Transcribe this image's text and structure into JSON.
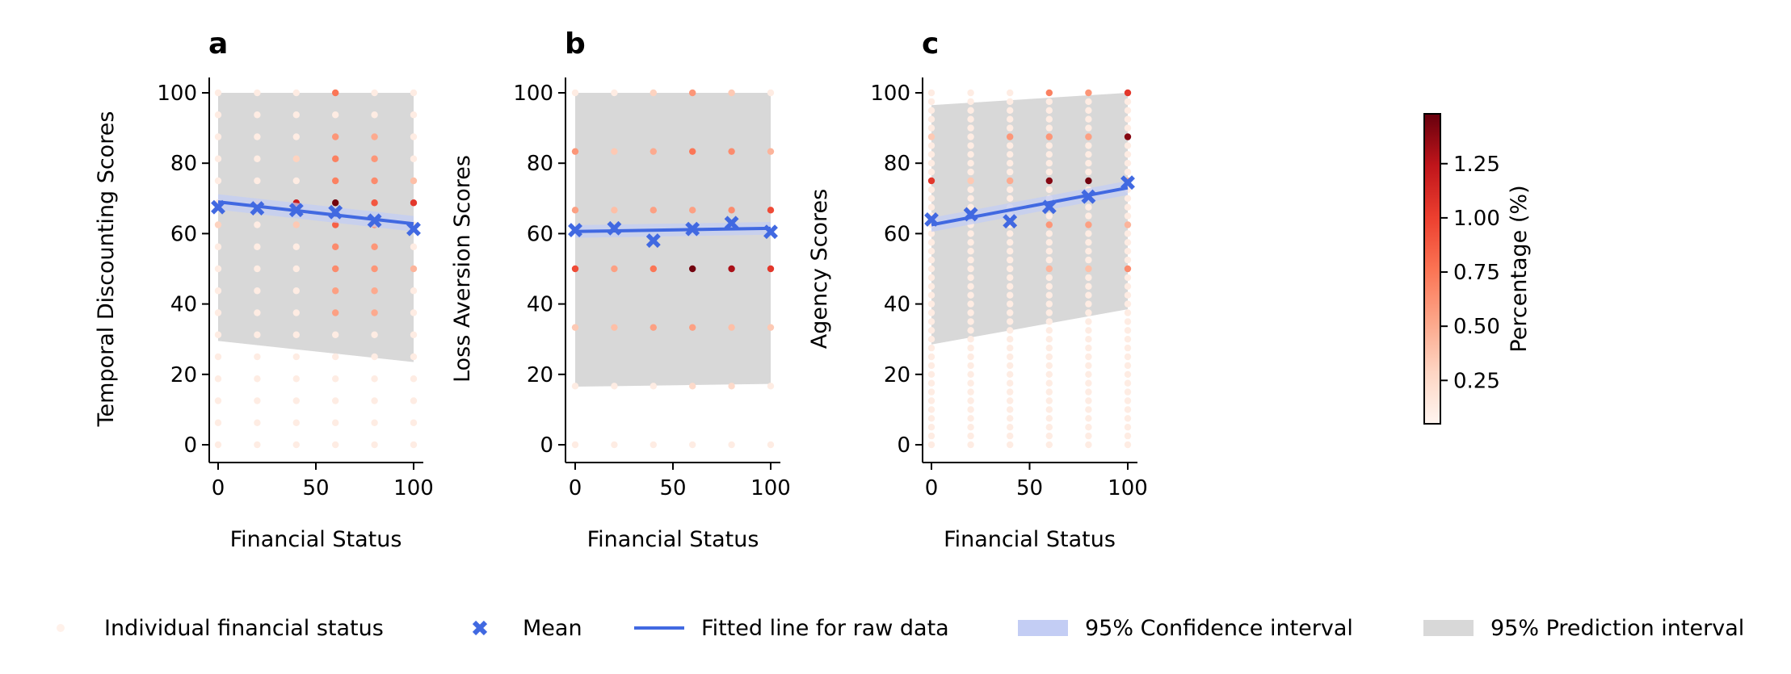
{
  "colors": {
    "mean": "#4169e1",
    "fit_line": "#4169e1",
    "confidence_band": "#c3cdf4",
    "prediction_band": "#d8d8d8",
    "colormap": [
      "#fff5f0",
      "#fdd5c3",
      "#fca588",
      "#fb7353",
      "#ec3f2f",
      "#c0151b",
      "#67000d"
    ]
  },
  "legend": {
    "items": [
      {
        "label": "Individual financial status",
        "kind": "dot"
      },
      {
        "label": "Mean",
        "kind": "x"
      },
      {
        "label": "Fitted line for raw data",
        "kind": "line"
      },
      {
        "label": "95% Confidence interval",
        "kind": "ci"
      },
      {
        "label": "95% Prediction interval",
        "kind": "pi"
      }
    ]
  },
  "colorbar": {
    "label": "Percentage (%)",
    "range": [
      0.05,
      1.48
    ],
    "ticks": [
      0.25,
      0.5,
      0.75,
      1.0,
      1.25
    ],
    "tick_labels": [
      "0.25",
      "0.50",
      "0.75",
      "1.00",
      "1.25"
    ]
  },
  "chart_data": [
    {
      "type": "scatter",
      "panel": "a",
      "xlabel": "Financial Status",
      "ylabel": "Temporal Discounting Scores",
      "xlim": [
        -2.5,
        104.5
      ],
      "ylim": [
        -5,
        105
      ],
      "xticks": [
        0,
        50,
        100
      ],
      "yticks": [
        0,
        20,
        40,
        60,
        80,
        100
      ],
      "x_levels": [
        0,
        20,
        40,
        60,
        80,
        100
      ],
      "dot_y": [
        100,
        93.75,
        87.5,
        81.25,
        75,
        68.75,
        62.5,
        56.25,
        50,
        43.75,
        37.5,
        31.25,
        25,
        18.75,
        12.5,
        6.25,
        0
      ],
      "highlight": [
        {
          "x": 60,
          "y": 100,
          "p": 0.75
        },
        {
          "x": 60,
          "y": 87.5,
          "p": 0.6
        },
        {
          "x": 80,
          "y": 87.5,
          "p": 0.5
        },
        {
          "x": 60,
          "y": 81.25,
          "p": 0.7
        },
        {
          "x": 80,
          "y": 81.25,
          "p": 0.6
        },
        {
          "x": 60,
          "y": 75,
          "p": 0.7
        },
        {
          "x": 80,
          "y": 75,
          "p": 0.65
        },
        {
          "x": 100,
          "y": 75,
          "p": 0.4
        },
        {
          "x": 40,
          "y": 68.75,
          "p": 1.2
        },
        {
          "x": 60,
          "y": 68.75,
          "p": 1.45
        },
        {
          "x": 80,
          "y": 68.75,
          "p": 0.9
        },
        {
          "x": 100,
          "y": 68.75,
          "p": 1.05
        },
        {
          "x": 60,
          "y": 62.5,
          "p": 0.85
        },
        {
          "x": 80,
          "y": 62.5,
          "p": 0.65
        },
        {
          "x": 60,
          "y": 56.25,
          "p": 0.65
        },
        {
          "x": 80,
          "y": 56.25,
          "p": 0.6
        },
        {
          "x": 60,
          "y": 50,
          "p": 0.65
        },
        {
          "x": 80,
          "y": 50,
          "p": 0.6
        },
        {
          "x": 100,
          "y": 50,
          "p": 0.45
        },
        {
          "x": 60,
          "y": 43.75,
          "p": 0.55
        },
        {
          "x": 80,
          "y": 43.75,
          "p": 0.5
        },
        {
          "x": 60,
          "y": 37.5,
          "p": 0.55
        },
        {
          "x": 80,
          "y": 37.5,
          "p": 0.5
        },
        {
          "x": 40,
          "y": 62.5,
          "p": 0.35
        },
        {
          "x": 40,
          "y": 81.25,
          "p": 0.3
        },
        {
          "x": 0,
          "y": 62.5,
          "p": 0.3
        },
        {
          "x": 20,
          "y": 68.75,
          "p": 0.3
        }
      ],
      "mean_x": [
        0,
        20,
        40,
        60,
        80,
        100
      ],
      "mean_y": [
        67.5,
        67.2,
        66.7,
        66.1,
        63.7,
        61.3
      ],
      "fit": {
        "y0": 69.0,
        "y100": 62.8,
        "ci_halfwidth": 2.2
      },
      "pi": {
        "upper": [
          100,
          100
        ],
        "lower": [
          29.5,
          23.5
        ]
      }
    },
    {
      "type": "scatter",
      "panel": "b",
      "xlabel": "Financial Status",
      "ylabel": "Loss Aversion Scores",
      "xlim": [
        -2.5,
        104.5
      ],
      "ylim": [
        -5,
        105
      ],
      "xticks": [
        0,
        50,
        100
      ],
      "yticks": [
        0,
        20,
        40,
        60,
        80,
        100
      ],
      "x_levels": [
        0,
        20,
        40,
        60,
        80,
        100
      ],
      "dot_y": [
        100,
        83.33,
        66.67,
        50,
        33.33,
        16.67,
        0
      ],
      "highlight": [
        {
          "x": 0,
          "y": 83.33,
          "p": 0.6
        },
        {
          "x": 20,
          "y": 83.33,
          "p": 0.35
        },
        {
          "x": 40,
          "y": 83.33,
          "p": 0.5
        },
        {
          "x": 60,
          "y": 83.33,
          "p": 0.75
        },
        {
          "x": 80,
          "y": 83.33,
          "p": 0.65
        },
        {
          "x": 100,
          "y": 83.33,
          "p": 0.45
        },
        {
          "x": 60,
          "y": 100,
          "p": 0.6
        },
        {
          "x": 40,
          "y": 100,
          "p": 0.3
        },
        {
          "x": 80,
          "y": 100,
          "p": 0.35
        },
        {
          "x": 0,
          "y": 66.67,
          "p": 0.55
        },
        {
          "x": 20,
          "y": 66.67,
          "p": 0.4
        },
        {
          "x": 40,
          "y": 66.67,
          "p": 0.55
        },
        {
          "x": 60,
          "y": 66.67,
          "p": 0.55
        },
        {
          "x": 80,
          "y": 66.67,
          "p": 0.65
        },
        {
          "x": 100,
          "y": 66.67,
          "p": 0.95
        },
        {
          "x": 0,
          "y": 50,
          "p": 0.95
        },
        {
          "x": 20,
          "y": 50,
          "p": 0.55
        },
        {
          "x": 40,
          "y": 50,
          "p": 0.75
        },
        {
          "x": 60,
          "y": 50,
          "p": 1.45
        },
        {
          "x": 80,
          "y": 50,
          "p": 1.3
        },
        {
          "x": 100,
          "y": 50,
          "p": 1.05
        },
        {
          "x": 0,
          "y": 33.33,
          "p": 0.35
        },
        {
          "x": 20,
          "y": 33.33,
          "p": 0.4
        },
        {
          "x": 40,
          "y": 33.33,
          "p": 0.55
        },
        {
          "x": 60,
          "y": 33.33,
          "p": 0.55
        },
        {
          "x": 80,
          "y": 33.33,
          "p": 0.4
        },
        {
          "x": 100,
          "y": 33.33,
          "p": 0.35
        },
        {
          "x": 60,
          "y": 16.67,
          "p": 0.25
        },
        {
          "x": 80,
          "y": 16.67,
          "p": 0.25
        }
      ],
      "mean_x": [
        0,
        20,
        40,
        60,
        80,
        100
      ],
      "mean_y": [
        61.0,
        61.5,
        58.0,
        61.3,
        63.0,
        60.5
      ],
      "fit": {
        "y0": 60.6,
        "y100": 61.5,
        "ci_halfwidth": 1.8
      },
      "pi": {
        "upper": [
          100,
          100
        ],
        "lower": [
          16.5,
          17.3
        ]
      }
    },
    {
      "type": "scatter",
      "panel": "c",
      "xlabel": "Financial Status",
      "ylabel": "Agency Scores",
      "xlim": [
        -2.5,
        104.5
      ],
      "ylim": [
        -5,
        105
      ],
      "xticks": [
        0,
        50,
        100
      ],
      "yticks": [
        0,
        20,
        40,
        60,
        80,
        100
      ],
      "x_levels": [
        0,
        20,
        40,
        60,
        80,
        100
      ],
      "dot_y": [
        100,
        97.5,
        95,
        92.5,
        90,
        87.5,
        85,
        82.5,
        80,
        77.5,
        75,
        72.5,
        70,
        67.5,
        65,
        62.5,
        60,
        57.5,
        55,
        52.5,
        50,
        47.5,
        45,
        42.5,
        40,
        37.5,
        35,
        32.5,
        30,
        27.5,
        25,
        22.5,
        20,
        17.5,
        15,
        12.5,
        10,
        7.5,
        5,
        2.5,
        0
      ],
      "highlight": [
        {
          "x": 0,
          "y": 75,
          "p": 1.05
        },
        {
          "x": 60,
          "y": 75,
          "p": 1.4
        },
        {
          "x": 80,
          "y": 75,
          "p": 1.45
        },
        {
          "x": 100,
          "y": 100,
          "p": 1.05
        },
        {
          "x": 100,
          "y": 87.5,
          "p": 1.4
        },
        {
          "x": 60,
          "y": 100,
          "p": 0.7
        },
        {
          "x": 80,
          "y": 100,
          "p": 0.6
        },
        {
          "x": 40,
          "y": 87.5,
          "p": 0.6
        },
        {
          "x": 60,
          "y": 87.5,
          "p": 0.6
        },
        {
          "x": 80,
          "y": 87.5,
          "p": 0.55
        },
        {
          "x": 60,
          "y": 62.5,
          "p": 0.6
        },
        {
          "x": 80,
          "y": 62.5,
          "p": 0.55
        },
        {
          "x": 100,
          "y": 50,
          "p": 0.65
        },
        {
          "x": 100,
          "y": 62.5,
          "p": 0.45
        },
        {
          "x": 60,
          "y": 50,
          "p": 0.45
        },
        {
          "x": 80,
          "y": 50,
          "p": 0.4
        },
        {
          "x": 40,
          "y": 75,
          "p": 0.5
        },
        {
          "x": 20,
          "y": 75,
          "p": 0.35
        },
        {
          "x": 0,
          "y": 87.5,
          "p": 0.35
        },
        {
          "x": 100,
          "y": 75,
          "p": 0.45
        }
      ],
      "mean_x": [
        0,
        20,
        40,
        60,
        80,
        100
      ],
      "mean_y": [
        64.0,
        65.5,
        63.5,
        67.6,
        70.5,
        74.5
      ],
      "fit": {
        "y0": 62.5,
        "y100": 73.0,
        "ci_halfwidth": 2.0
      },
      "pi": {
        "upper": [
          96.5,
          100
        ],
        "lower": [
          28.5,
          38.5
        ]
      }
    }
  ]
}
